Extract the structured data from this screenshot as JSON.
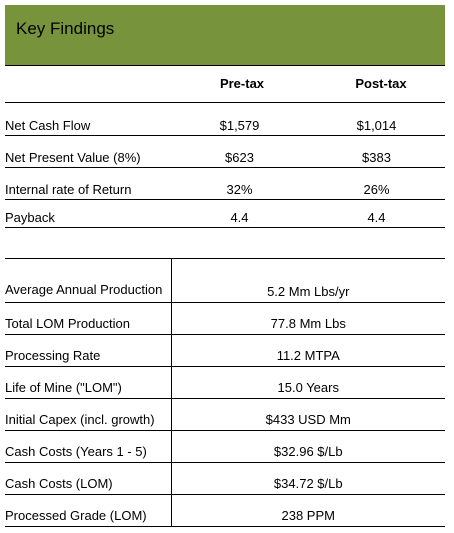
{
  "header": {
    "title": "Key Findings"
  },
  "columns": {
    "pre": "Pre-tax",
    "post": "Post-tax"
  },
  "cashflow": [
    {
      "label": "Net Cash Flow",
      "pre": "$1,579",
      "post": "$1,014"
    },
    {
      "label": "Net Present Value (8%)",
      "pre": "$623",
      "post": "$383"
    },
    {
      "label": "Internal rate of Return",
      "pre": "32%",
      "post": "26%"
    },
    {
      "label": "Payback",
      "pre": "4.4",
      "post": "4.4"
    }
  ],
  "metrics": [
    {
      "label": "Average Annual Production",
      "value": "5.2 Mm Lbs/yr"
    },
    {
      "label": "Total LOM Production",
      "value": "77.8 Mm Lbs"
    },
    {
      "label": "Processing Rate",
      "value": "11.2 MTPA"
    },
    {
      "label": "Life of Mine (\"LOM\")",
      "value": "15.0 Years"
    },
    {
      "label": "Initial Capex (incl. growth)",
      "value": "$433 USD Mm"
    },
    {
      "label": "Cash Costs (Years 1 - 5)",
      "value": "$32.96 $/Lb"
    },
    {
      "label": "Cash Costs (LOM)",
      "value": "$34.72 $/Lb"
    },
    {
      "label": "Processed Grade (LOM)",
      "value": "238 PPM"
    }
  ]
}
